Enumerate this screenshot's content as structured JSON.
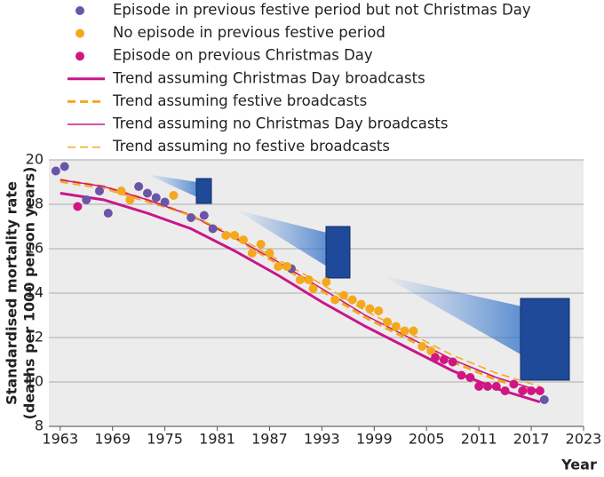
{
  "chart_data": {
    "type": "scatter",
    "x_label": "Year",
    "y_label": [
      "Standardised mortality rate",
      "(deaths per 1000 person years)"
    ],
    "xlim": [
      1961.7,
      2023
    ],
    "xticks": [
      1963,
      1969,
      1975,
      1981,
      1987,
      1993,
      1999,
      2005,
      2011,
      2017,
      2023
    ],
    "ylim": [
      8,
      20
    ],
    "yticks": [
      8,
      10,
      12,
      14,
      16,
      18,
      20
    ],
    "grid": true,
    "series": [
      {
        "name": "Episode in previous festive period but not Christmas Day",
        "color": "#6a55a6",
        "kind": "scatter",
        "x": [
          1962.5,
          1963.5,
          1966,
          1967.5,
          1968.5,
          1972,
          1973,
          1974,
          1975,
          1978,
          1979.5,
          1980.5,
          1989.5,
          2018.5
        ],
        "values": [
          19.5,
          19.7,
          18.2,
          18.6,
          17.6,
          18.8,
          18.5,
          18.3,
          18.1,
          17.4,
          17.5,
          16.9,
          15.1,
          9.2
        ]
      },
      {
        "name": "No episode in previous festive period",
        "color": "#f5a81c",
        "kind": "scatter",
        "x": [
          1970,
          1971,
          1976,
          1982,
          1983,
          1984,
          1985,
          1986,
          1987,
          1988,
          1989,
          1990.5,
          1991.5,
          1992,
          1993.5,
          1994.5,
          1995.5,
          1996.5,
          1997.5,
          1998.5,
          1999.5,
          2000.5,
          2001.5,
          2002.5,
          2003.5,
          2004.5,
          2005.5
        ],
        "values": [
          18.6,
          18.2,
          18.4,
          16.6,
          16.6,
          16.4,
          15.8,
          16.2,
          15.8,
          15.2,
          15.2,
          14.6,
          14.6,
          14.2,
          14.5,
          13.7,
          13.9,
          13.7,
          13.5,
          13.3,
          13.2,
          12.7,
          12.5,
          12.3,
          12.3,
          11.6,
          11.4
        ]
      },
      {
        "name": "Episode on previous Christmas Day",
        "color": "#d01682",
        "kind": "scatter",
        "x": [
          1965,
          2006,
          2007,
          2008,
          2009,
          2010,
          2011,
          2012,
          2013,
          2014,
          2015,
          2016,
          2017,
          2018
        ],
        "values": [
          17.9,
          11.1,
          11.0,
          10.9,
          10.3,
          10.2,
          9.8,
          9.8,
          9.8,
          9.6,
          9.9,
          9.6,
          9.6,
          9.6
        ]
      },
      {
        "name": "Trend assuming Christmas Day broadcasts",
        "color": "#c8168a",
        "kind": "line",
        "width": 3,
        "dashed": false,
        "x": [
          1963,
          1968,
          1973,
          1978,
          1983,
          1988,
          1993,
          1998,
          2003,
          2008,
          2013,
          2018
        ],
        "values": [
          18.5,
          18.2,
          17.6,
          16.9,
          15.9,
          14.8,
          13.6,
          12.5,
          11.5,
          10.5,
          9.7,
          9.1
        ]
      },
      {
        "name": "Trend assuming festive broadcasts",
        "color": "#f5a81c",
        "kind": "line",
        "width": 3,
        "dashed": true,
        "x": [
          1963,
          1968,
          1973,
          1978,
          1983,
          1988,
          1993,
          1998,
          2003,
          2008,
          2013,
          2018
        ],
        "values": [
          19.1,
          18.8,
          18.2,
          17.5,
          16.5,
          15.3,
          14.1,
          12.9,
          11.9,
          10.9,
          10.1,
          9.5
        ]
      },
      {
        "name": "Trend assuming no Christmas Day broadcasts",
        "color": "#c8168a",
        "kind": "line",
        "width": 1.5,
        "dashed": false,
        "x": [
          1963,
          1968,
          1973,
          1978,
          1983,
          1988,
          1993,
          1998,
          2003,
          2008,
          2013,
          2018
        ],
        "values": [
          19.1,
          18.8,
          18.2,
          17.5,
          16.5,
          15.4,
          14.2,
          13.0,
          12.0,
          11.0,
          10.2,
          9.6
        ]
      },
      {
        "name": "Trend assuming no festive broadcasts",
        "color": "#f5a81c",
        "kind": "line",
        "width": 1.5,
        "dashed": true,
        "x": [
          1963,
          1968,
          1973,
          1978,
          1983,
          1988,
          1993,
          1998,
          2003,
          2008,
          2013,
          2018
        ],
        "values": [
          19.0,
          18.7,
          18.1,
          17.5,
          16.6,
          15.5,
          14.4,
          13.2,
          12.2,
          11.2,
          10.4,
          9.8
        ]
      }
    ]
  }
}
